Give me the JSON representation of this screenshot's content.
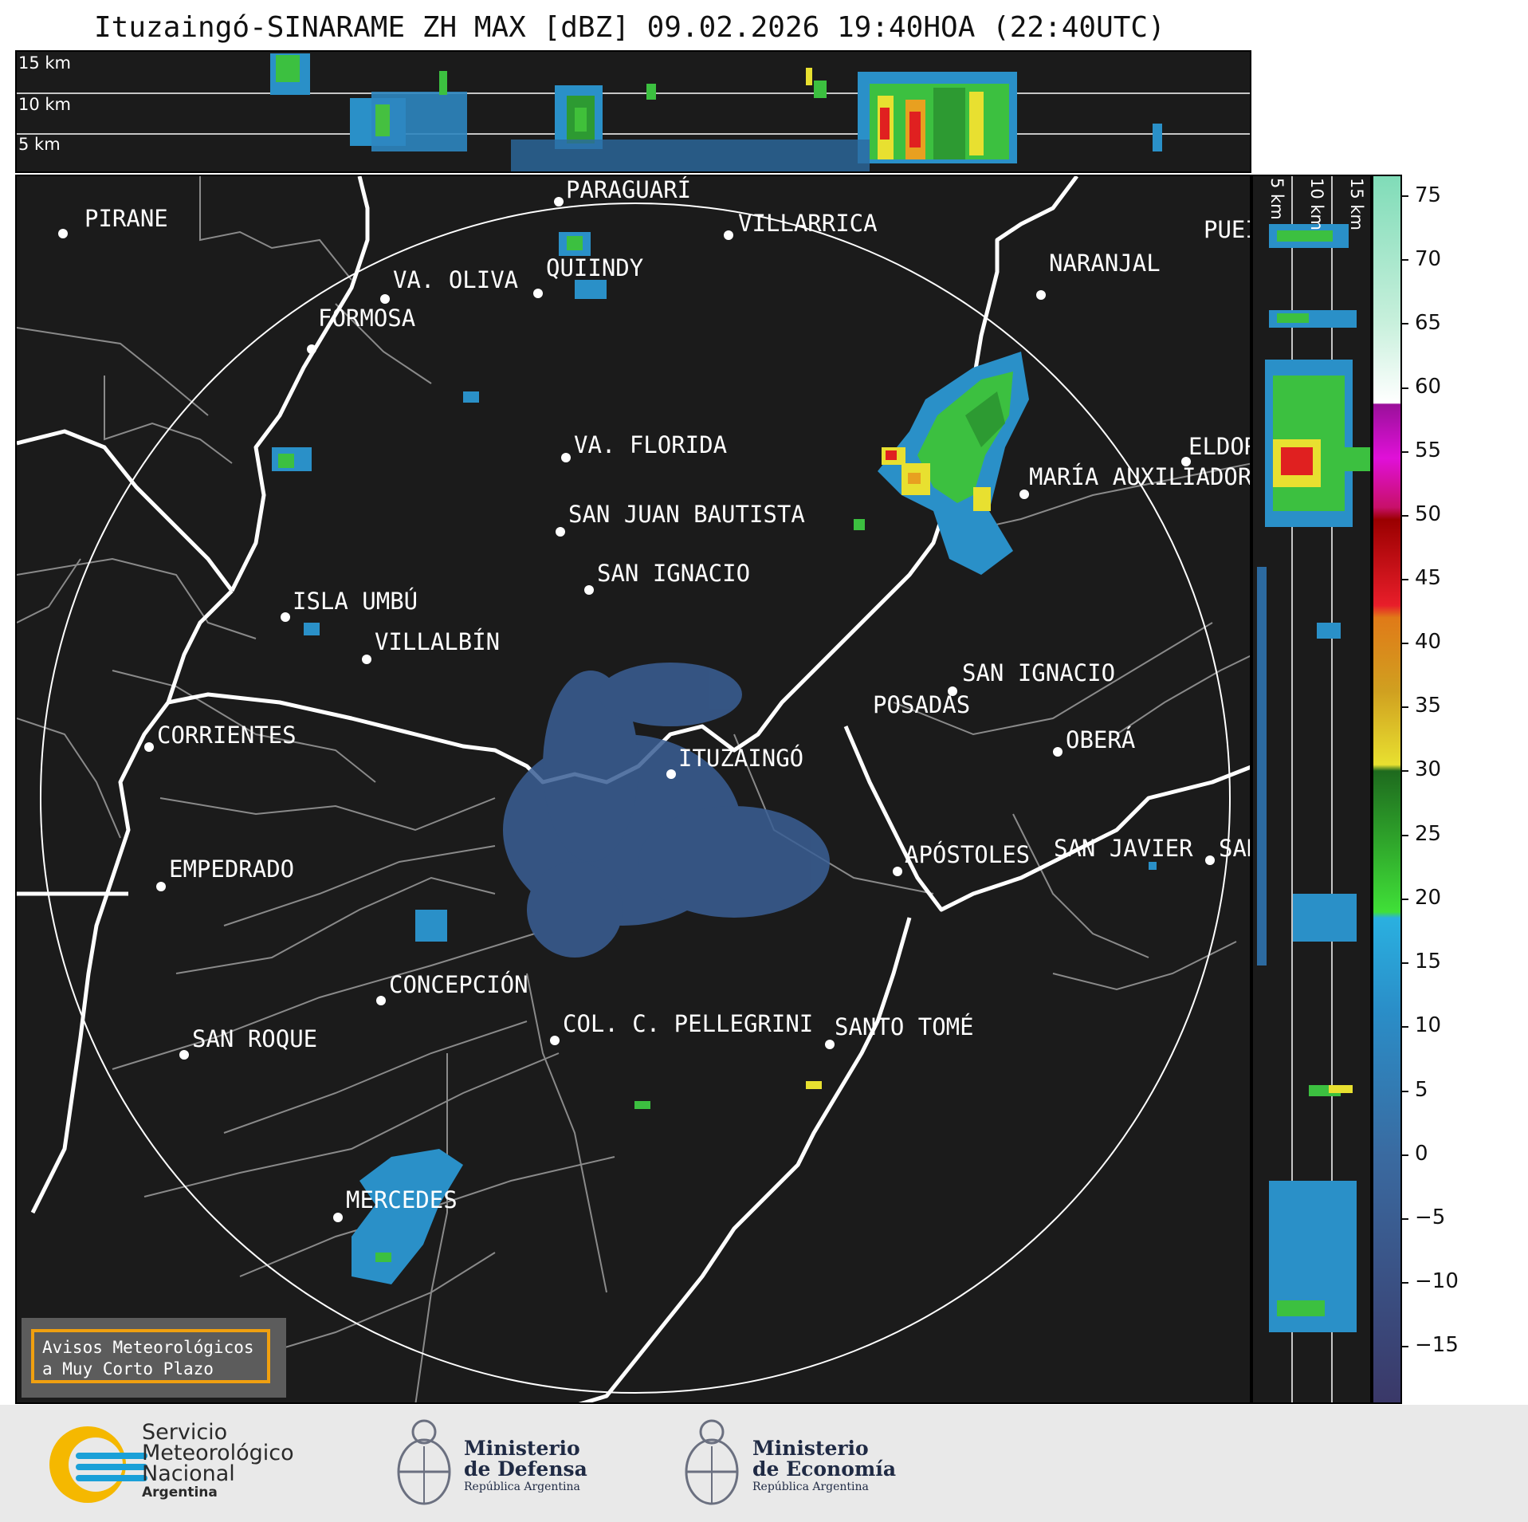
{
  "title": "Ituzaingó-SINARAME ZH MAX [dBZ] 09.02.2026 19:40HOA (22:40UTC)",
  "top_strip": {
    "levels": [
      "15 km",
      "10 km",
      "5 km"
    ]
  },
  "right_strip": {
    "levels": [
      "5 km",
      "10 km",
      "15 km"
    ]
  },
  "colorbar": {
    "ticks": [
      "75",
      "70",
      "65",
      "60",
      "55",
      "50",
      "45",
      "40",
      "35",
      "30",
      "25",
      "20",
      "15",
      "10",
      "5",
      "0",
      "−5",
      "−10",
      "−15"
    ]
  },
  "cities": [
    {
      "name": "PARAGUARÍ"
    },
    {
      "name": "PIRANE"
    },
    {
      "name": "VILLARRICA"
    },
    {
      "name": "QUIINDY"
    },
    {
      "name": "VA. OLIVA"
    },
    {
      "name": "NARANJAL"
    },
    {
      "name": "FORMOSA"
    },
    {
      "name": "VA. FLORIDA"
    },
    {
      "name": "ELDOR"
    },
    {
      "name": "MARÍA AUXILIADOR"
    },
    {
      "name": "SAN JUAN BAUTISTA"
    },
    {
      "name": "SAN IGNACIO"
    },
    {
      "name": "ISLA UMBÚ"
    },
    {
      "name": "VILLALBÍN"
    },
    {
      "name": "SAN IGNACIO"
    },
    {
      "name": "POSADAS"
    },
    {
      "name": "CORRIENTES"
    },
    {
      "name": "ITUZAINGÓ"
    },
    {
      "name": "OBERÁ"
    },
    {
      "name": "EMPEDRADO"
    },
    {
      "name": "APÓSTOLES"
    },
    {
      "name": "SAN JAVIER"
    },
    {
      "name": "SAN"
    },
    {
      "name": "CONCEPCIÓN"
    },
    {
      "name": "SAN ROQUE"
    },
    {
      "name": "COL. C. PELLEGRINI"
    },
    {
      "name": "SANTO TOMÉ"
    },
    {
      "name": "MERCEDES"
    },
    {
      "name": "PUEI"
    }
  ],
  "notice": {
    "line1": "Avisos Meteorológicos",
    "line2": "a Muy Corto Plazo"
  },
  "logos": {
    "smn": [
      "Servicio",
      "Meteorológico",
      "Nacional",
      "Argentina"
    ],
    "defensa": [
      "Ministerio",
      "de Defensa",
      "República Argentina"
    ],
    "economia": [
      "Ministerio",
      "de Economía",
      "República Argentina"
    ]
  },
  "colors": {
    "background": "#1b1b1b",
    "border_lines": "#ffffff",
    "province_lines": "#888888",
    "notice_border": "#f0a010",
    "smn_blue": "#1aa0d8",
    "smn_yellow": "#f5b800"
  }
}
